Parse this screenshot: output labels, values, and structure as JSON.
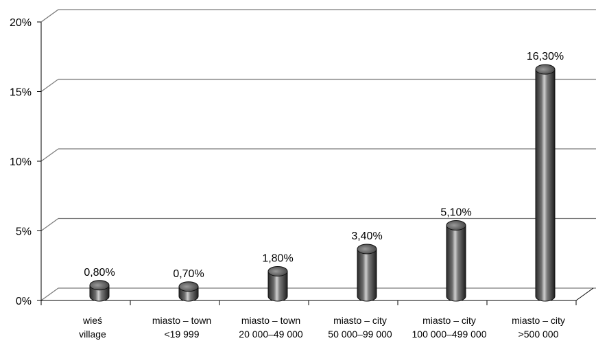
{
  "chart_data": {
    "type": "bar",
    "style": "3d-cylinder",
    "categories": [
      [
        "wieś",
        "village"
      ],
      [
        "miasto – town",
        "<19 999"
      ],
      [
        "miasto – town",
        "20 000–49 000"
      ],
      [
        "miasto – city",
        "50 000–99 000"
      ],
      [
        "miasto – city",
        "100 000–499 000"
      ],
      [
        "miasto – city",
        ">500 000"
      ]
    ],
    "values": [
      0.8,
      0.7,
      1.8,
      3.4,
      5.1,
      16.3
    ],
    "data_labels": [
      "0,80%",
      "0,70%",
      "1,80%",
      "3,40%",
      "5,10%",
      "16,30%"
    ],
    "y_ticks": [
      0,
      5,
      10,
      15,
      20
    ],
    "y_tick_labels": [
      "0%",
      "5%",
      "10%",
      "15%",
      "20%"
    ],
    "ylim": [
      0,
      20
    ],
    "grid": true,
    "legend": "none",
    "colors": {
      "bar": "#6e6e6e",
      "bar_highlight": "#d0d0d0",
      "bar_shadow": "#2a2a2a",
      "grid": "#7a7a7a",
      "axis": "#000000"
    }
  }
}
